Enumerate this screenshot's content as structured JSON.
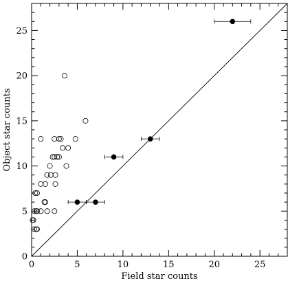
{
  "chart_data": {
    "type": "scatter",
    "xlabel": "Field star counts",
    "ylabel": "Object star counts",
    "xlim": [
      0,
      28
    ],
    "ylim": [
      0,
      28
    ],
    "x_ticks": [
      0,
      5,
      10,
      15,
      20,
      25
    ],
    "y_ticks": [
      0,
      5,
      10,
      15,
      20,
      25
    ],
    "x_tick_labels": [
      "0",
      "5",
      "10",
      "15",
      "20",
      "25"
    ],
    "y_tick_labels": [
      "0",
      "5",
      "10",
      "15",
      "20",
      "25"
    ],
    "grid": false,
    "reference_line": {
      "kind": "y=x",
      "from": [
        0,
        0
      ],
      "to": [
        28,
        28
      ]
    },
    "series": [
      {
        "marker": "open-circle",
        "points": [
          {
            "x": 0.1,
            "y": 4
          },
          {
            "x": 0.2,
            "y": 4
          },
          {
            "x": 0.3,
            "y": 3
          },
          {
            "x": 0.5,
            "y": 3
          },
          {
            "x": 0.6,
            "y": 3
          },
          {
            "x": 0.3,
            "y": 5
          },
          {
            "x": 0.5,
            "y": 5
          },
          {
            "x": 0.6,
            "y": 5
          },
          {
            "x": 0.4,
            "y": 7
          },
          {
            "x": 0.6,
            "y": 7
          },
          {
            "x": 1.0,
            "y": 5
          },
          {
            "x": 1.0,
            "y": 8
          },
          {
            "x": 1.0,
            "y": 13
          },
          {
            "x": 1.4,
            "y": 6
          },
          {
            "x": 1.5,
            "y": 6
          },
          {
            "x": 1.5,
            "y": 8
          },
          {
            "x": 1.7,
            "y": 5
          },
          {
            "x": 1.7,
            "y": 9
          },
          {
            "x": 2.0,
            "y": 10
          },
          {
            "x": 2.1,
            "y": 9
          },
          {
            "x": 2.3,
            "y": 11
          },
          {
            "x": 2.5,
            "y": 5
          },
          {
            "x": 2.5,
            "y": 11
          },
          {
            "x": 2.5,
            "y": 13
          },
          {
            "x": 2.6,
            "y": 8
          },
          {
            "x": 2.6,
            "y": 9
          },
          {
            "x": 2.8,
            "y": 11
          },
          {
            "x": 3.0,
            "y": 11
          },
          {
            "x": 3.0,
            "y": 13
          },
          {
            "x": 3.2,
            "y": 13
          },
          {
            "x": 3.4,
            "y": 12
          },
          {
            "x": 3.6,
            "y": 20
          },
          {
            "x": 3.8,
            "y": 10
          },
          {
            "x": 4.0,
            "y": 12
          },
          {
            "x": 4.8,
            "y": 13
          },
          {
            "x": 5.9,
            "y": 15
          }
        ]
      },
      {
        "marker": "filled-circle",
        "points": [
          {
            "x": 5,
            "y": 6,
            "xerr": 1
          },
          {
            "x": 7,
            "y": 6,
            "xerr": 1
          },
          {
            "x": 9,
            "y": 11,
            "xerr": 1
          },
          {
            "x": 13,
            "y": 13,
            "xerr": 1
          },
          {
            "x": 22,
            "y": 26,
            "xerr": 2
          }
        ]
      }
    ]
  }
}
